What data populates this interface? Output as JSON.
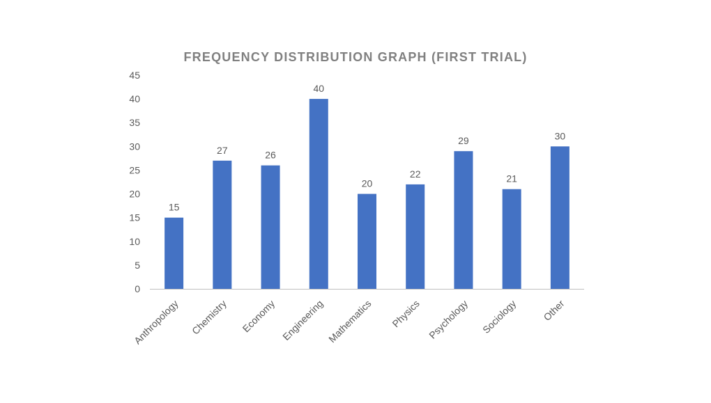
{
  "chart_data": {
    "type": "bar",
    "title": "FREQUENCY DISTRIBUTION GRAPH (FIRST TRIAL)",
    "xlabel": "",
    "ylabel": "",
    "categories": [
      "Anthropology",
      "Chemistry",
      "Economy",
      "Engineering",
      "Mathematics",
      "Physics",
      "Psychology",
      "Sociology",
      "Other"
    ],
    "values": [
      15,
      27,
      26,
      40,
      20,
      22,
      29,
      21,
      30
    ],
    "ylim": [
      0,
      45
    ],
    "yticks": [
      "0",
      "5",
      "10",
      "15",
      "20",
      "25",
      "30",
      "35",
      "40",
      "45"
    ],
    "grid": false,
    "legend": "none",
    "data_labels": true,
    "colors": {
      "bar": "#4472c4",
      "title": "#808080",
      "axis_text": "#595959",
      "axis_line": "#bfbfbf"
    }
  }
}
